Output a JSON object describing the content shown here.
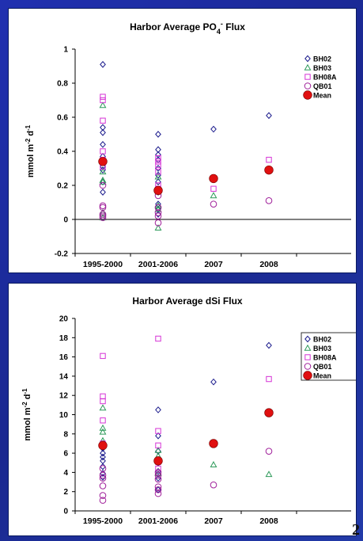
{
  "page_number": "2",
  "legend": {
    "entries": [
      {
        "label": "BH02",
        "marker": "diamond",
        "color": "#1a1a8c"
      },
      {
        "label": "BH03",
        "marker": "triangle",
        "color": "#2e9a5a"
      },
      {
        "label": "BH08A",
        "marker": "square",
        "color": "#d633d6"
      },
      {
        "label": "QB01",
        "marker": "circle",
        "color": "#a0209a"
      },
      {
        "label": "Mean",
        "marker": "filled-circle",
        "color": "#e01010"
      }
    ]
  },
  "chart_data": [
    {
      "type": "scatter",
      "title_main": "Harbor Average PO",
      "title_sub": "4",
      "title_sup": "-",
      "title_tail": " Flux",
      "ylabel_main": "mmol m",
      "ylabel_sup1": "-2",
      "ylabel_mid": " d",
      "ylabel_sup2": "-1",
      "categories": [
        "1995-2000",
        "2001-2006",
        "2007",
        "2008"
      ],
      "ylim": [
        -0.2,
        1
      ],
      "yticks": [
        "-0.2",
        "0",
        "0.2",
        "0.4",
        "0.6",
        "0.8",
        "1"
      ],
      "ytick_values": [
        -0.2,
        0,
        0.2,
        0.4,
        0.6,
        0.8,
        1
      ],
      "zero_line": true,
      "series": [
        {
          "name": "BH02",
          "points": [
            [
              0,
              0.91
            ],
            [
              0,
              0.54
            ],
            [
              0,
              0.51
            ],
            [
              0,
              0.44
            ],
            [
              0,
              0.37
            ],
            [
              0,
              0.31
            ],
            [
              0,
              0.29
            ],
            [
              0,
              0.22
            ],
            [
              0,
              0.16
            ],
            [
              1,
              0.5
            ],
            [
              1,
              0.41
            ],
            [
              1,
              0.38
            ],
            [
              1,
              0.35
            ],
            [
              1,
              0.3
            ],
            [
              1,
              0.26
            ],
            [
              1,
              0.22
            ],
            [
              1,
              0.16
            ],
            [
              1,
              0.09
            ],
            [
              1,
              0.06
            ],
            [
              1,
              0.03
            ],
            [
              2,
              0.53
            ],
            [
              3,
              0.61
            ]
          ]
        },
        {
          "name": "BH03",
          "points": [
            [
              0,
              0.67
            ],
            [
              0,
              0.28
            ],
            [
              0,
              0.23
            ],
            [
              0,
              0.22
            ],
            [
              0,
              0.04
            ],
            [
              0,
              0.01
            ],
            [
              1,
              0.25
            ],
            [
              1,
              0.08
            ],
            [
              1,
              0.06
            ],
            [
              1,
              -0.05
            ],
            [
              2,
              0.14
            ]
          ]
        },
        {
          "name": "BH08A",
          "points": [
            [
              0,
              0.72
            ],
            [
              0,
              0.7
            ],
            [
              0,
              0.58
            ],
            [
              0,
              0.4
            ],
            [
              0,
              0.35
            ],
            [
              0,
              0.31
            ],
            [
              1,
              0.36
            ],
            [
              1,
              0.34
            ],
            [
              1,
              0.32
            ],
            [
              1,
              0.28
            ],
            [
              1,
              0.2
            ],
            [
              1,
              0.18
            ],
            [
              2,
              0.18
            ],
            [
              3,
              0.35
            ]
          ]
        },
        {
          "name": "QB01",
          "points": [
            [
              0,
              0.2
            ],
            [
              0,
              0.08
            ],
            [
              0,
              0.07
            ],
            [
              0,
              0.03
            ],
            [
              0,
              0.02
            ],
            [
              0,
              0.01
            ],
            [
              1,
              0.14
            ],
            [
              1,
              0.07
            ],
            [
              1,
              0.04
            ],
            [
              1,
              0.02
            ],
            [
              1,
              -0.02
            ],
            [
              2,
              0.09
            ],
            [
              3,
              0.11
            ]
          ]
        },
        {
          "name": "Mean",
          "points": [
            [
              0,
              0.34
            ],
            [
              1,
              0.17
            ],
            [
              2,
              0.24
            ],
            [
              3,
              0.29
            ]
          ]
        }
      ]
    },
    {
      "type": "scatter",
      "title_main": "Harbor Average dSi Flux",
      "title_sub": "",
      "title_sup": "",
      "title_tail": "",
      "ylabel_main": "mmol m",
      "ylabel_sup1": "-2",
      "ylabel_mid": " d",
      "ylabel_sup2": "-1",
      "categories": [
        "1995-2000",
        "2001-2006",
        "2007",
        "2008"
      ],
      "ylim": [
        0,
        20
      ],
      "yticks": [
        "0",
        "2",
        "4",
        "6",
        "8",
        "10",
        "12",
        "14",
        "16",
        "18",
        "20"
      ],
      "ytick_values": [
        0,
        2,
        4,
        6,
        8,
        10,
        12,
        14,
        16,
        18,
        20
      ],
      "zero_line": false,
      "series": [
        {
          "name": "BH02",
          "points": [
            [
              0,
              6.5
            ],
            [
              0,
              6.0
            ],
            [
              0,
              5.6
            ],
            [
              0,
              5.2
            ],
            [
              0,
              4.6
            ],
            [
              0,
              3.9
            ],
            [
              0,
              3.5
            ],
            [
              1,
              10.5
            ],
            [
              1,
              7.8
            ],
            [
              1,
              6.2
            ],
            [
              1,
              5.0
            ],
            [
              1,
              4.1
            ],
            [
              1,
              3.8
            ],
            [
              1,
              3.4
            ],
            [
              1,
              2.2
            ],
            [
              2,
              13.4
            ],
            [
              3,
              17.2
            ]
          ]
        },
        {
          "name": "BH03",
          "points": [
            [
              0,
              10.7
            ],
            [
              0,
              8.6
            ],
            [
              0,
              8.2
            ],
            [
              0,
              7.3
            ],
            [
              0,
              7.0
            ],
            [
              1,
              6.3
            ],
            [
              1,
              5.7
            ],
            [
              1,
              5.3
            ],
            [
              1,
              3.9
            ],
            [
              2,
              4.8
            ],
            [
              3,
              3.8
            ]
          ]
        },
        {
          "name": "BH08A",
          "points": [
            [
              0,
              16.1
            ],
            [
              0,
              11.9
            ],
            [
              0,
              11.4
            ],
            [
              0,
              9.4
            ],
            [
              0,
              7.0
            ],
            [
              1,
              17.9
            ],
            [
              1,
              8.3
            ],
            [
              1,
              6.8
            ],
            [
              1,
              5.1
            ],
            [
              1,
              4.4
            ],
            [
              3,
              13.7
            ]
          ]
        },
        {
          "name": "QB01",
          "points": [
            [
              0,
              4.4
            ],
            [
              0,
              3.7
            ],
            [
              0,
              3.4
            ],
            [
              0,
              2.6
            ],
            [
              0,
              1.6
            ],
            [
              0,
              1.1
            ],
            [
              1,
              4.0
            ],
            [
              1,
              3.7
            ],
            [
              1,
              3.3
            ],
            [
              1,
              2.5
            ],
            [
              1,
              2.2
            ],
            [
              1,
              1.8
            ],
            [
              2,
              2.7
            ],
            [
              3,
              6.2
            ]
          ]
        },
        {
          "name": "Mean",
          "points": [
            [
              0,
              6.8
            ],
            [
              1,
              5.2
            ],
            [
              2,
              7.0
            ],
            [
              3,
              10.2
            ]
          ]
        }
      ]
    }
  ]
}
